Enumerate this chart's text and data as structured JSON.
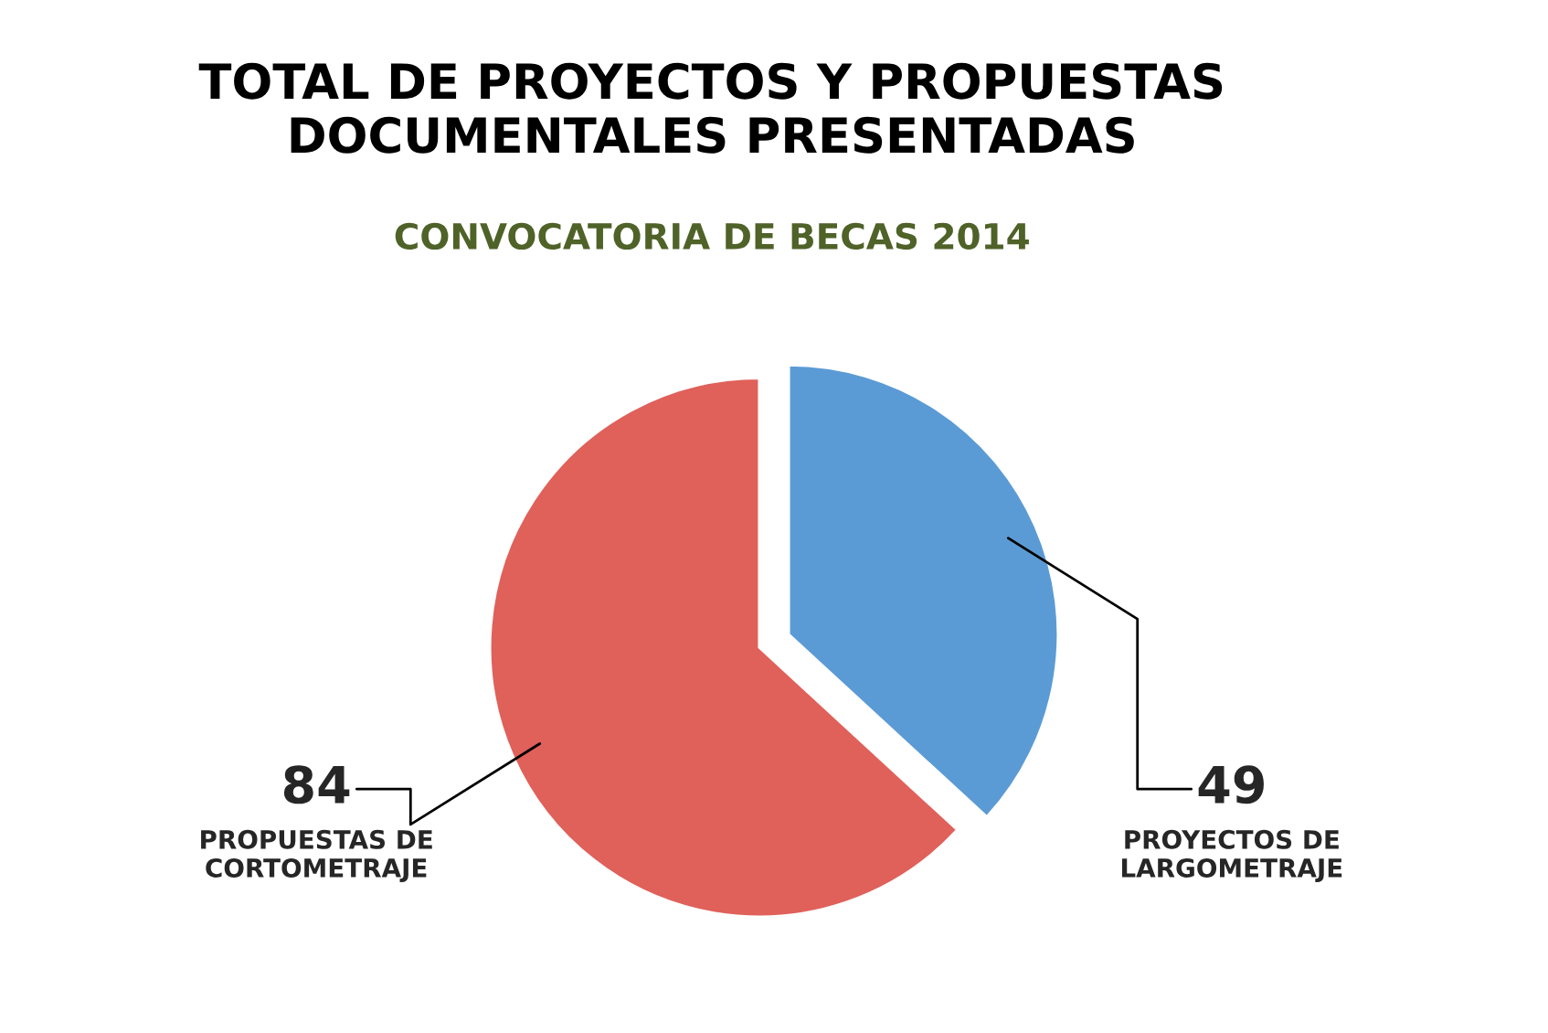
{
  "chart_data": {
    "type": "pie",
    "title": "TOTAL DE PROYECTOS Y PROPUESTAS\nDOCUMENTALES PRESENTADAS",
    "subtitle": "CONVOCATORIA DE BECAS 2014",
    "categories": [
      "PROYECTOS DE\nLARGOMETRAJE",
      "PROPUESTAS DE\nCORTOMETRAJE"
    ],
    "values": [
      49,
      84
    ],
    "colors": [
      "#5b9bd5",
      "#e0605a"
    ],
    "data_labels": true
  }
}
